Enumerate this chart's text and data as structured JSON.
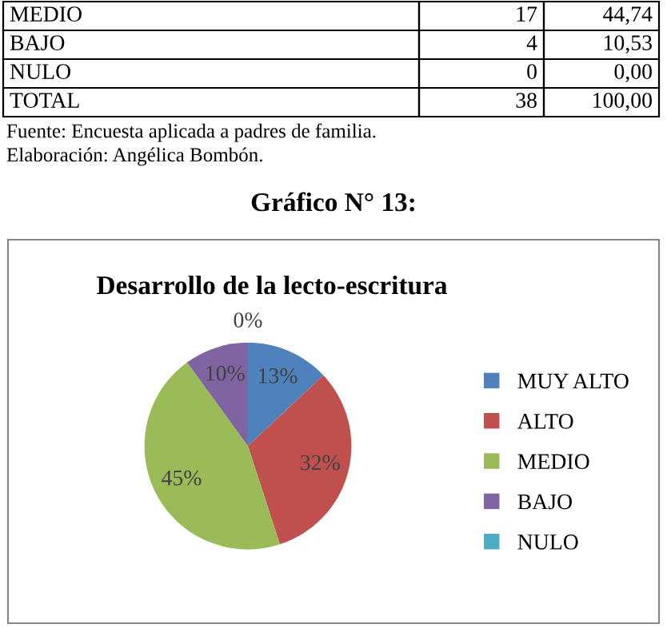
{
  "chart_data": {
    "type": "pie",
    "title": "Desarrollo de la lecto-escritura",
    "categories": [
      "MUY ALTO",
      "ALTO",
      "MEDIO",
      "BAJO",
      "NULO"
    ],
    "values": [
      13,
      32,
      45,
      10,
      0
    ],
    "value_labels": [
      "13%",
      "32%",
      "45%",
      "10%",
      "0%"
    ],
    "colors": [
      "#4f81bd",
      "#c0504d",
      "#9bbb59",
      "#8064a2",
      "#4bacc6"
    ],
    "legend": "right",
    "annotations": [
      "MEDIO",
      "17",
      "44,74",
      "BAJO",
      "4",
      "10,53",
      "NULO",
      "0",
      "0,00",
      "TOTAL",
      "38",
      "100,00",
      "Fuente: Encuesta aplicada a padres de familia.",
      "Elaboración: Angélica Bombón.",
      "Gráfico N° 13:"
    ]
  }
}
